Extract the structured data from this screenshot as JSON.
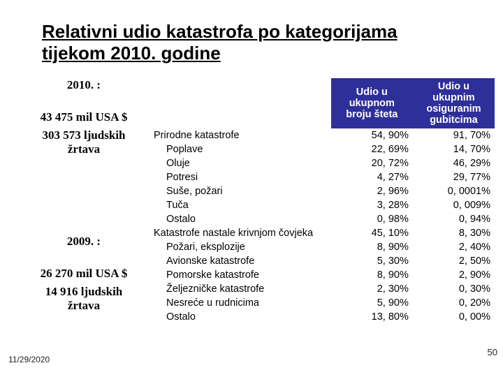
{
  "title": "Relativni udio katastrofa po kategorijama tijekom 2010. godine",
  "left": {
    "year2010_label": "2010. :",
    "y2010_amount": "43 475 mil USA $",
    "y2010_victims_l1": "303 573 ljudskih",
    "y2010_victims_l2": "žrtava",
    "year2009_label": "2009. :",
    "y2009_amount": "26 270 mil USA $",
    "y2009_victims_l1": "14 916 ljudskih",
    "y2009_victims_l2": "žrtava"
  },
  "table": {
    "header_col1": "Udio u ukupnom broju šteta",
    "header_col2": "Udio u ukupnim osiguranim gubitcima",
    "header_bg": "#2f2f99",
    "header_fg": "#ffffff",
    "rows": [
      {
        "label": "Prirodne katastrofe",
        "v1": "54, 90%",
        "v2": "91, 70%",
        "kind": "cat"
      },
      {
        "label": "Poplave",
        "v1": "22, 69%",
        "v2": "14, 70%",
        "kind": "sub"
      },
      {
        "label": "Oluje",
        "v1": "20, 72%",
        "v2": "46, 29%",
        "kind": "sub"
      },
      {
        "label": "Potresi",
        "v1": "4, 27%",
        "v2": "29, 77%",
        "kind": "sub"
      },
      {
        "label": "Suše, požari",
        "v1": "2, 96%",
        "v2": "0, 0001%",
        "kind": "sub"
      },
      {
        "label": "Tuča",
        "v1": "3, 28%",
        "v2": "0, 009%",
        "kind": "sub"
      },
      {
        "label": "Ostalo",
        "v1": "0, 98%",
        "v2": "0, 94%",
        "kind": "sub"
      },
      {
        "label": "Katastrofe nastale krivnjom čovjeka",
        "v1": "45, 10%",
        "v2": "8, 30%",
        "kind": "cat"
      },
      {
        "label": "Požari, eksplozije",
        "v1": "8, 90%",
        "v2": "2, 40%",
        "kind": "sub"
      },
      {
        "label": "Avionske katastrofe",
        "v1": "5, 30%",
        "v2": "2, 50%",
        "kind": "sub"
      },
      {
        "label": "Pomorske katastrofe",
        "v1": "8, 90%",
        "v2": "2, 90%",
        "kind": "sub"
      },
      {
        "label": "Željezničke katastrofe",
        "v1": "2, 30%",
        "v2": "0, 30%",
        "kind": "sub"
      },
      {
        "label": "Nesreće u rudnicima",
        "v1": "5, 90%",
        "v2": "0, 20%",
        "kind": "sub"
      },
      {
        "label": "Ostalo",
        "v1": "13, 80%",
        "v2": "0, 00%",
        "kind": "sub"
      }
    ]
  },
  "footer": {
    "date": "11/29/2020",
    "page": "50"
  }
}
